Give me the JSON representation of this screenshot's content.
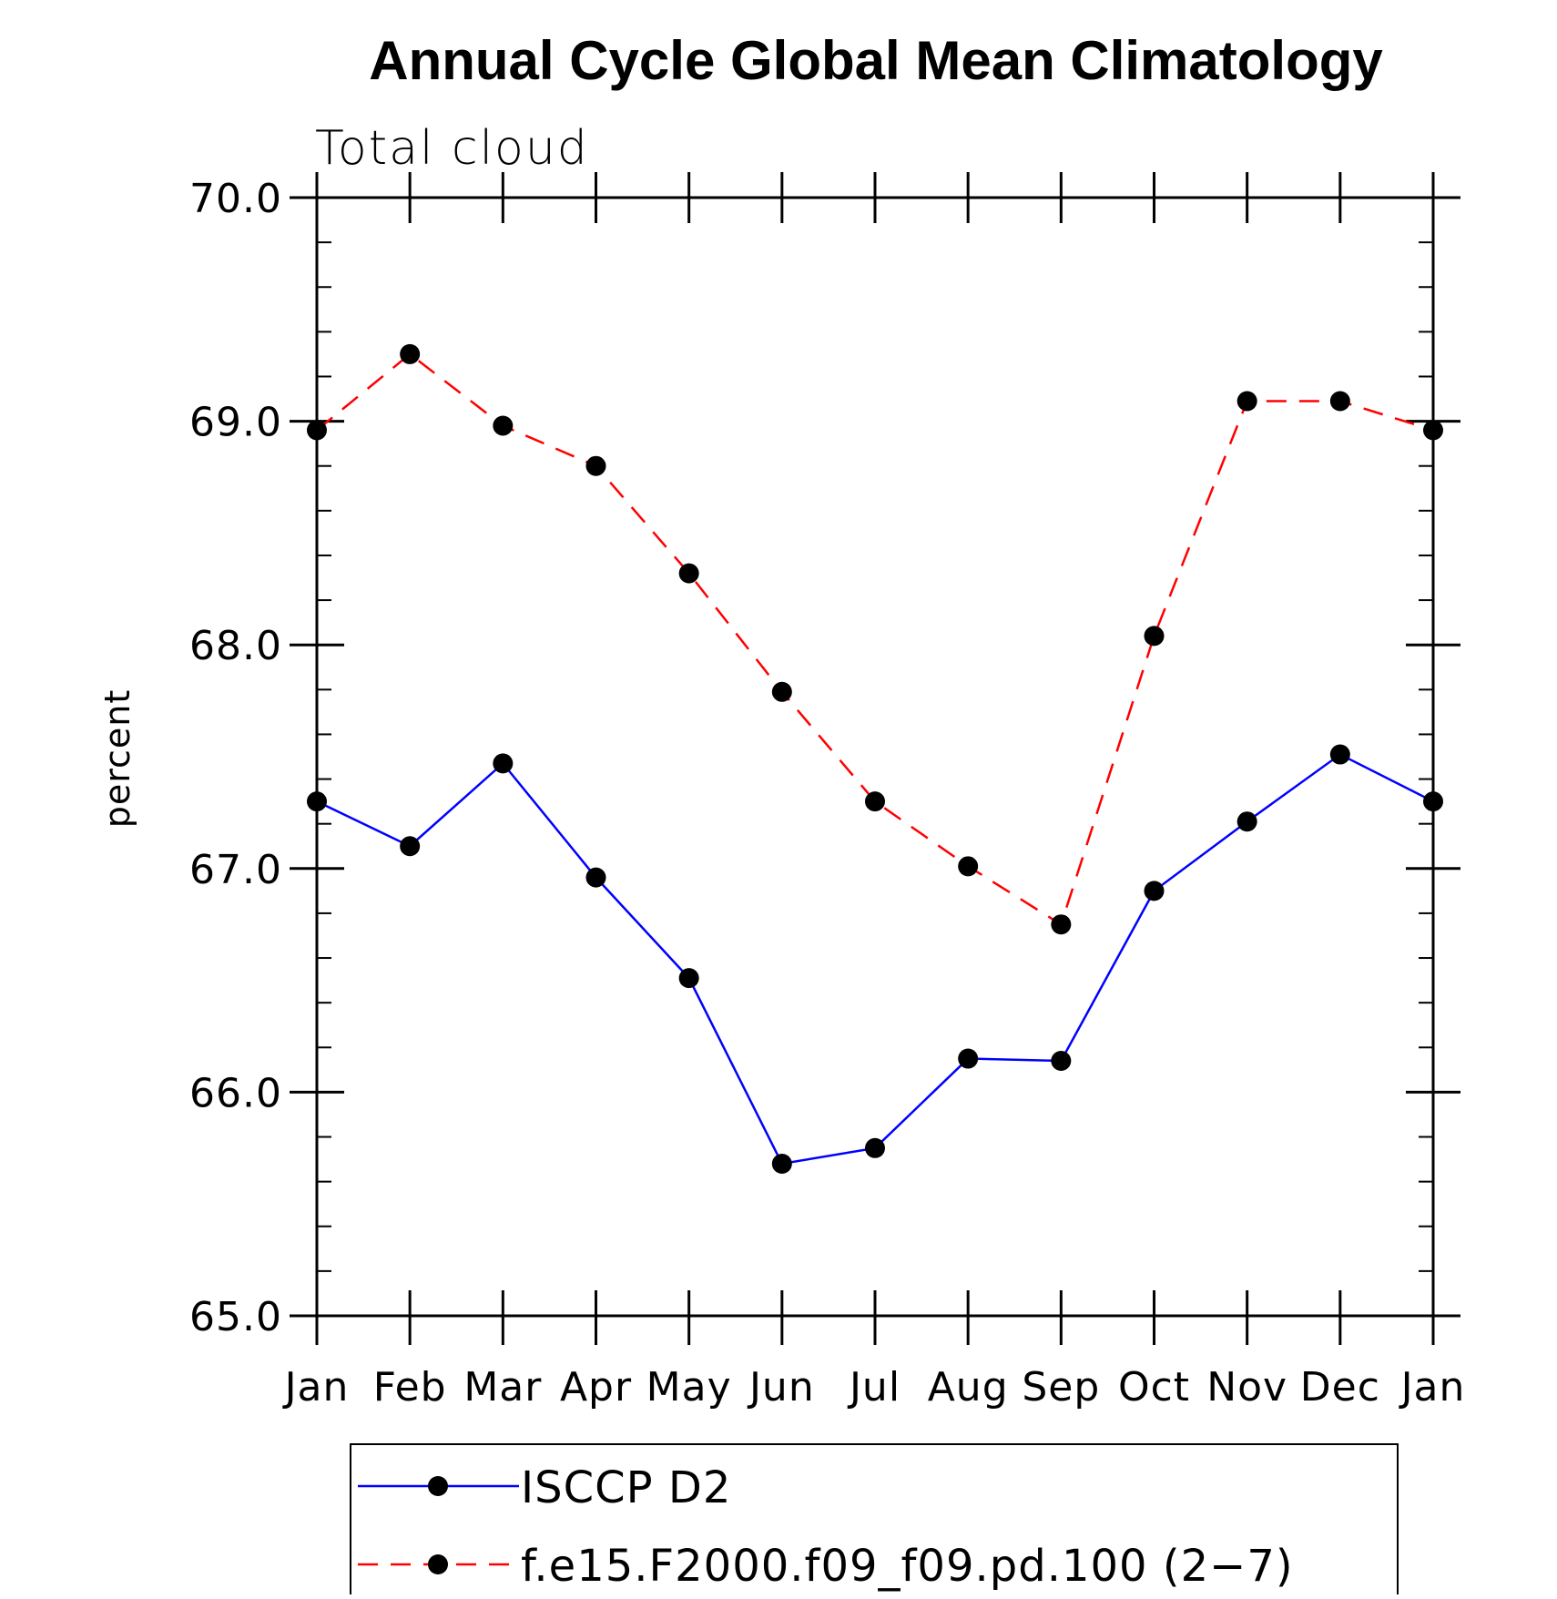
{
  "chart_data": {
    "type": "line",
    "title": "Annual Cycle Global Mean Climatology",
    "subtitle": "Total cloud",
    "xlabel": "",
    "ylabel": "percent",
    "categories": [
      "Jan",
      "Feb",
      "Mar",
      "Apr",
      "May",
      "Jun",
      "Jul",
      "Aug",
      "Sep",
      "Oct",
      "Nov",
      "Dec",
      "Jan"
    ],
    "ylim": [
      65.0,
      70.0
    ],
    "yticks": [
      "65.0",
      "66.0",
      "67.0",
      "68.0",
      "69.0",
      "70.0"
    ],
    "y_minor_step": 0.2,
    "grid": false,
    "legend_position": "bottom",
    "series": [
      {
        "name": "ISCCP D2",
        "color": "#0000ff",
        "line_style": "solid",
        "marker": "filled-circle",
        "values": [
          67.3,
          67.1,
          67.47,
          66.96,
          66.51,
          65.68,
          65.75,
          66.15,
          66.14,
          66.9,
          67.21,
          67.51,
          67.3
        ]
      },
      {
        "name": "f.e15.F2000.f09_f09.pd.100 (2−7)",
        "color": "#ff0000",
        "line_style": "dashed",
        "marker": "filled-circle",
        "values": [
          68.96,
          69.3,
          68.98,
          68.8,
          68.32,
          67.79,
          67.3,
          67.01,
          66.75,
          68.04,
          69.09,
          69.09,
          68.96
        ]
      }
    ]
  }
}
